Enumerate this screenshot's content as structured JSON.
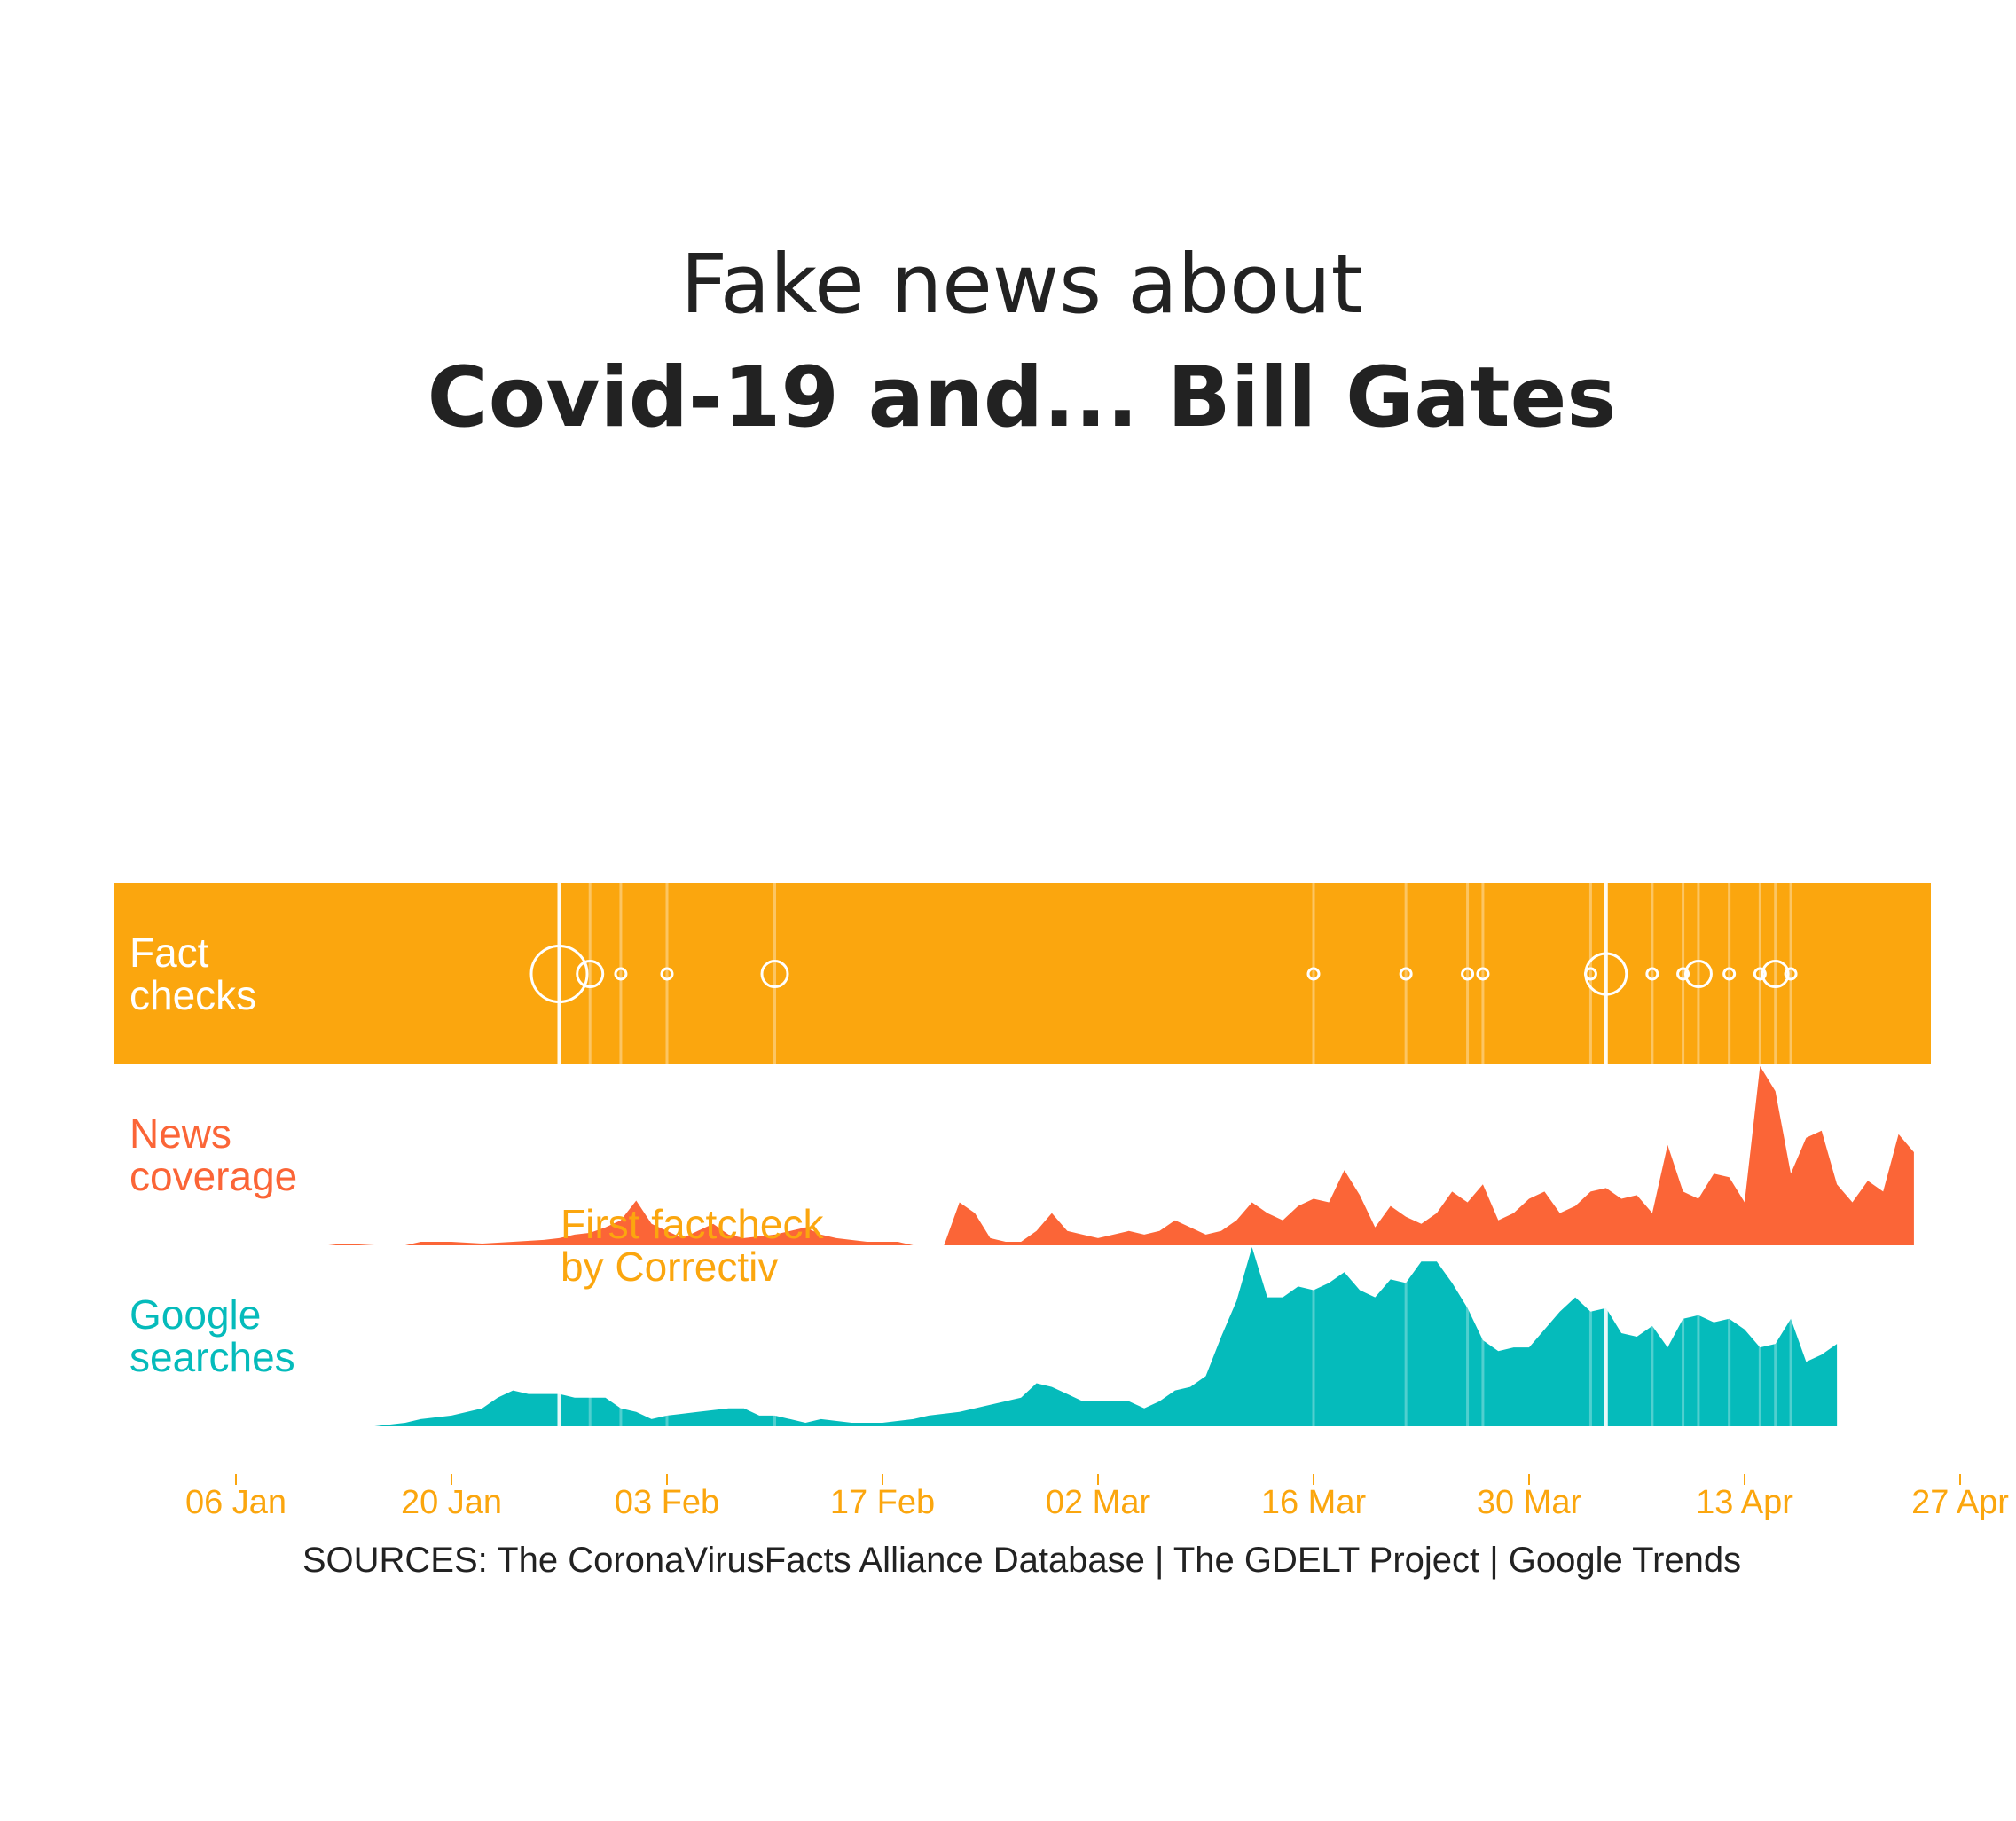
{
  "title": {
    "line1": "Fake news about",
    "line2": "Covid-19 and... Bill Gates"
  },
  "colors": {
    "fact_band": "#fba60e",
    "news": "#fb6537",
    "google": "#05bbbb",
    "axis_text": "#fba60e",
    "title_text": "#222222",
    "marker": "#ffffff"
  },
  "rows": {
    "fact_checks": "Fact\nchecks",
    "news_coverage": "News\ncoverage",
    "google_searches": "Google\nsearches"
  },
  "annotation": "First factcheck\nby Correctiv",
  "sources": "SOURCES: The CoronaVirusFacts Alliance Database | The GDELT Project | Google Trends",
  "chart_data": {
    "type": "area",
    "x_range": [
      "2020-01-01",
      "2020-04-27"
    ],
    "x_ticks": [
      {
        "date": "2020-01-06",
        "label": "06 Jan"
      },
      {
        "date": "2020-01-20",
        "label": "20 Jan"
      },
      {
        "date": "2020-02-03",
        "label": "03 Feb"
      },
      {
        "date": "2020-02-17",
        "label": "17 Feb"
      },
      {
        "date": "2020-03-02",
        "label": "02 Mar"
      },
      {
        "date": "2020-03-16",
        "label": "16 Mar"
      },
      {
        "date": "2020-03-30",
        "label": "30 Mar"
      },
      {
        "date": "2020-04-13",
        "label": "13 Apr"
      },
      {
        "date": "2020-04-27",
        "label": "27 Apr"
      }
    ],
    "fact_checks": [
      {
        "date": "2020-01-27",
        "count": 4
      },
      {
        "date": "2020-01-29",
        "count": 2
      },
      {
        "date": "2020-01-31",
        "count": 1
      },
      {
        "date": "2020-02-03",
        "count": 1
      },
      {
        "date": "2020-02-10",
        "count": 2
      },
      {
        "date": "2020-03-16",
        "count": 1
      },
      {
        "date": "2020-03-22",
        "count": 1
      },
      {
        "date": "2020-03-26",
        "count": 1
      },
      {
        "date": "2020-03-27",
        "count": 1
      },
      {
        "date": "2020-04-03",
        "count": 1
      },
      {
        "date": "2020-04-04",
        "count": 3
      },
      {
        "date": "2020-04-07",
        "count": 1
      },
      {
        "date": "2020-04-09",
        "count": 1
      },
      {
        "date": "2020-04-10",
        "count": 2
      },
      {
        "date": "2020-04-12",
        "count": 1
      },
      {
        "date": "2020-04-14",
        "count": 1
      },
      {
        "date": "2020-04-15",
        "count": 2
      },
      {
        "date": "2020-04-16",
        "count": 1
      }
    ],
    "series": [
      {
        "name": "News coverage",
        "points": [
          [
            "2020-01-12",
            0
          ],
          [
            "2020-01-13",
            1
          ],
          [
            "2020-01-15",
            0
          ],
          [
            "2020-01-17",
            0
          ],
          [
            "2020-01-18",
            2
          ],
          [
            "2020-01-20",
            2
          ],
          [
            "2020-01-22",
            1
          ],
          [
            "2020-01-24",
            2
          ],
          [
            "2020-01-26",
            3
          ],
          [
            "2020-01-27",
            4
          ],
          [
            "2020-01-28",
            6
          ],
          [
            "2020-01-29",
            7
          ],
          [
            "2020-01-30",
            10
          ],
          [
            "2020-01-31",
            14
          ],
          [
            "2020-02-01",
            25
          ],
          [
            "2020-02-02",
            12
          ],
          [
            "2020-02-03",
            8
          ],
          [
            "2020-02-04",
            4
          ],
          [
            "2020-02-05",
            8
          ],
          [
            "2020-02-06",
            12
          ],
          [
            "2020-02-07",
            6
          ],
          [
            "2020-02-08",
            4
          ],
          [
            "2020-02-10",
            6
          ],
          [
            "2020-02-12",
            10
          ],
          [
            "2020-02-13",
            6
          ],
          [
            "2020-02-14",
            4
          ],
          [
            "2020-02-16",
            2
          ],
          [
            "2020-02-18",
            2
          ],
          [
            "2020-02-19",
            0
          ],
          [
            "2020-02-21",
            0
          ],
          [
            "2020-02-22",
            24
          ],
          [
            "2020-02-23",
            18
          ],
          [
            "2020-02-24",
            4
          ],
          [
            "2020-02-25",
            2
          ],
          [
            "2020-02-26",
            2
          ],
          [
            "2020-02-27",
            8
          ],
          [
            "2020-02-28",
            18
          ],
          [
            "2020-02-29",
            8
          ],
          [
            "2020-03-01",
            6
          ],
          [
            "2020-03-02",
            4
          ],
          [
            "2020-03-03",
            6
          ],
          [
            "2020-03-04",
            8
          ],
          [
            "2020-03-05",
            6
          ],
          [
            "2020-03-06",
            8
          ],
          [
            "2020-03-07",
            14
          ],
          [
            "2020-03-08",
            10
          ],
          [
            "2020-03-09",
            6
          ],
          [
            "2020-03-10",
            8
          ],
          [
            "2020-03-11",
            14
          ],
          [
            "2020-03-12",
            24
          ],
          [
            "2020-03-13",
            18
          ],
          [
            "2020-03-14",
            14
          ],
          [
            "2020-03-15",
            22
          ],
          [
            "2020-03-16",
            26
          ],
          [
            "2020-03-17",
            24
          ],
          [
            "2020-03-18",
            42
          ],
          [
            "2020-03-19",
            28
          ],
          [
            "2020-03-20",
            10
          ],
          [
            "2020-03-21",
            22
          ],
          [
            "2020-03-22",
            16
          ],
          [
            "2020-03-23",
            12
          ],
          [
            "2020-03-24",
            18
          ],
          [
            "2020-03-25",
            30
          ],
          [
            "2020-03-26",
            24
          ],
          [
            "2020-03-27",
            34
          ],
          [
            "2020-03-28",
            14
          ],
          [
            "2020-03-29",
            18
          ],
          [
            "2020-03-30",
            26
          ],
          [
            "2020-03-31",
            30
          ],
          [
            "2020-04-01",
            18
          ],
          [
            "2020-04-02",
            22
          ],
          [
            "2020-04-03",
            30
          ],
          [
            "2020-04-04",
            32
          ],
          [
            "2020-04-05",
            26
          ],
          [
            "2020-04-06",
            28
          ],
          [
            "2020-04-07",
            18
          ],
          [
            "2020-04-08",
            56
          ],
          [
            "2020-04-09",
            30
          ],
          [
            "2020-04-10",
            26
          ],
          [
            "2020-04-11",
            40
          ],
          [
            "2020-04-12",
            38
          ],
          [
            "2020-04-13",
            24
          ],
          [
            "2020-04-14",
            100
          ],
          [
            "2020-04-15",
            86
          ],
          [
            "2020-04-16",
            40
          ],
          [
            "2020-04-17",
            60
          ],
          [
            "2020-04-18",
            64
          ],
          [
            "2020-04-19",
            34
          ],
          [
            "2020-04-20",
            24
          ],
          [
            "2020-04-21",
            36
          ],
          [
            "2020-04-22",
            30
          ],
          [
            "2020-04-23",
            62
          ],
          [
            "2020-04-24",
            52
          ]
        ]
      },
      {
        "name": "Google searches",
        "points": [
          [
            "2020-01-14",
            0
          ],
          [
            "2020-01-15",
            0
          ],
          [
            "2020-01-17",
            2
          ],
          [
            "2020-01-18",
            4
          ],
          [
            "2020-01-20",
            6
          ],
          [
            "2020-01-22",
            10
          ],
          [
            "2020-01-23",
            16
          ],
          [
            "2020-01-24",
            20
          ],
          [
            "2020-01-25",
            18
          ],
          [
            "2020-01-27",
            18
          ],
          [
            "2020-01-28",
            16
          ],
          [
            "2020-01-30",
            16
          ],
          [
            "2020-01-31",
            10
          ],
          [
            "2020-02-01",
            8
          ],
          [
            "2020-02-02",
            4
          ],
          [
            "2020-02-03",
            6
          ],
          [
            "2020-02-05",
            8
          ],
          [
            "2020-02-07",
            10
          ],
          [
            "2020-02-08",
            10
          ],
          [
            "2020-02-09",
            6
          ],
          [
            "2020-02-10",
            6
          ],
          [
            "2020-02-11",
            4
          ],
          [
            "2020-02-12",
            2
          ],
          [
            "2020-02-13",
            4
          ],
          [
            "2020-02-15",
            2
          ],
          [
            "2020-02-17",
            2
          ],
          [
            "2020-02-19",
            4
          ],
          [
            "2020-02-20",
            6
          ],
          [
            "2020-02-22",
            8
          ],
          [
            "2020-02-24",
            12
          ],
          [
            "2020-02-25",
            14
          ],
          [
            "2020-02-26",
            16
          ],
          [
            "2020-02-27",
            24
          ],
          [
            "2020-02-28",
            22
          ],
          [
            "2020-02-29",
            18
          ],
          [
            "2020-03-01",
            14
          ],
          [
            "2020-03-02",
            14
          ],
          [
            "2020-03-04",
            14
          ],
          [
            "2020-03-05",
            10
          ],
          [
            "2020-03-06",
            14
          ],
          [
            "2020-03-07",
            20
          ],
          [
            "2020-03-08",
            22
          ],
          [
            "2020-03-09",
            28
          ],
          [
            "2020-03-10",
            50
          ],
          [
            "2020-03-11",
            70
          ],
          [
            "2020-03-12",
            100
          ],
          [
            "2020-03-13",
            72
          ],
          [
            "2020-03-14",
            72
          ],
          [
            "2020-03-15",
            78
          ],
          [
            "2020-03-16",
            76
          ],
          [
            "2020-03-17",
            80
          ],
          [
            "2020-03-18",
            86
          ],
          [
            "2020-03-19",
            76
          ],
          [
            "2020-03-20",
            72
          ],
          [
            "2020-03-21",
            82
          ],
          [
            "2020-03-22",
            80
          ],
          [
            "2020-03-23",
            92
          ],
          [
            "2020-03-24",
            92
          ],
          [
            "2020-03-25",
            80
          ],
          [
            "2020-03-26",
            66
          ],
          [
            "2020-03-27",
            48
          ],
          [
            "2020-03-28",
            42
          ],
          [
            "2020-03-29",
            44
          ],
          [
            "2020-03-30",
            44
          ],
          [
            "2020-03-31",
            54
          ],
          [
            "2020-04-01",
            64
          ],
          [
            "2020-04-02",
            72
          ],
          [
            "2020-04-03",
            64
          ],
          [
            "2020-04-04",
            66
          ],
          [
            "2020-04-05",
            52
          ],
          [
            "2020-04-06",
            50
          ],
          [
            "2020-04-07",
            56
          ],
          [
            "2020-04-08",
            44
          ],
          [
            "2020-04-09",
            60
          ],
          [
            "2020-04-10",
            62
          ],
          [
            "2020-04-11",
            58
          ],
          [
            "2020-04-12",
            60
          ],
          [
            "2020-04-13",
            54
          ],
          [
            "2020-04-14",
            44
          ],
          [
            "2020-04-15",
            46
          ],
          [
            "2020-04-16",
            60
          ],
          [
            "2020-04-17",
            36
          ],
          [
            "2020-04-18",
            40
          ],
          [
            "2020-04-19",
            46
          ]
        ]
      }
    ]
  }
}
